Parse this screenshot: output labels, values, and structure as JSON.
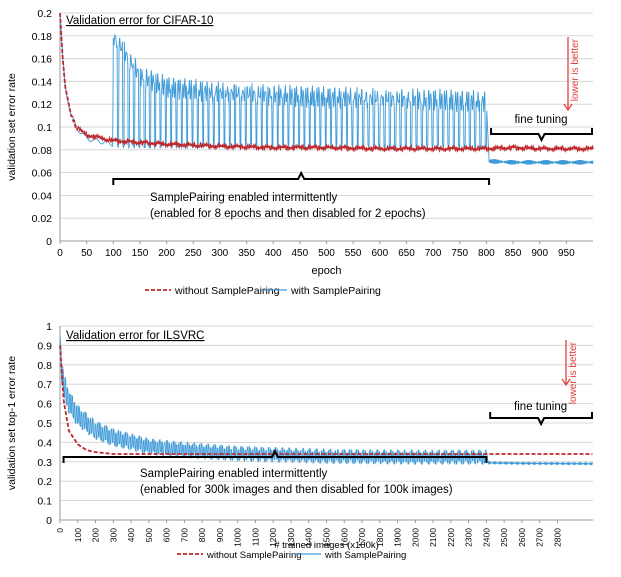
{
  "chart_data": [
    {
      "type": "line",
      "title": "Validation error for CIFAR-10",
      "xlabel": "epoch",
      "ylabel": "validation set error rate",
      "xlim": [
        0,
        1000
      ],
      "ylim": [
        0,
        0.2
      ],
      "x_ticks": [
        0,
        50,
        100,
        150,
        200,
        250,
        300,
        350,
        400,
        450,
        500,
        550,
        600,
        650,
        700,
        750,
        800,
        850,
        900,
        950
      ],
      "y_ticks": [
        0,
        0.02,
        0.04,
        0.06,
        0.08,
        0.1,
        0.12,
        0.14,
        0.16,
        0.18,
        0.2
      ],
      "y_tick_labels": [
        "0",
        "0.02",
        "0.04",
        "0.06",
        "0.08",
        "0.1",
        "0.12",
        "0.14",
        "0.16",
        "0.18",
        "0.2"
      ],
      "grid": true,
      "legend_position": "bottom",
      "series": [
        {
          "name": "without SamplePairing",
          "color": "#c0282d",
          "dash": true,
          "x": [
            0,
            5,
            10,
            20,
            30,
            50,
            100,
            200,
            300,
            400,
            500,
            600,
            700,
            800,
            850,
            900,
            950,
            1000
          ],
          "y": [
            0.2,
            0.16,
            0.135,
            0.112,
            0.1,
            0.093,
            0.088,
            0.085,
            0.083,
            0.082,
            0.082,
            0.081,
            0.081,
            0.081,
            0.082,
            0.081,
            0.081,
            0.081
          ]
        },
        {
          "name": "with SamplePairing",
          "color": "#3f9ad8",
          "dash": false,
          "x": [
            0,
            5,
            10,
            20,
            30,
            50,
            99,
            100,
            150,
            200,
            300,
            400,
            500,
            600,
            700,
            800,
            805,
            850,
            900,
            950,
            1000
          ],
          "y": [
            0.2,
            0.16,
            0.135,
            0.112,
            0.1,
            0.09,
            0.085,
            0.18,
            0.145,
            0.135,
            0.13,
            0.128,
            0.126,
            0.125,
            0.124,
            0.122,
            0.07,
            0.069,
            0.069,
            0.069,
            0.069
          ],
          "spiky_range": [
            100,
            800
          ],
          "spike_period": 10,
          "spike_low": 0.083
        }
      ],
      "annotations": {
        "intermittent_line1": "SamplePairing enabled intermittently",
        "intermittent_line2": "(enabled for 8 epochs and then disabled for 2 epochs)",
        "intermittent_range": [
          100,
          805
        ],
        "fine_tuning": "fine tuning",
        "fine_tuning_range": [
          805,
          1000
        ],
        "lower_is_better": "lower is better"
      }
    },
    {
      "type": "line",
      "title": "Validation error for ILSVRC",
      "xlabel": "# trained images (x100k)",
      "ylabel": "validation set top-1 error rate",
      "xlim": [
        0,
        3000
      ],
      "ylim": [
        0,
        1
      ],
      "x_ticks": [
        0,
        100,
        200,
        300,
        400,
        500,
        600,
        700,
        800,
        900,
        1000,
        1100,
        1200,
        1300,
        1400,
        1500,
        1600,
        1700,
        1800,
        1900,
        2000,
        2100,
        2200,
        2300,
        2400,
        2500,
        2600,
        2700,
        2800
      ],
      "y_ticks": [
        0,
        0.1,
        0.2,
        0.3,
        0.4,
        0.5,
        0.6,
        0.7,
        0.8,
        0.9,
        1
      ],
      "y_tick_labels": [
        "0",
        "0.1",
        "0.2",
        "0.3",
        "0.4",
        "0.5",
        "0.6",
        "0.7",
        "0.8",
        "0.9",
        "1"
      ],
      "grid": true,
      "legend_position": "bottom",
      "series": [
        {
          "name": "without SamplePairing",
          "color": "#c0282d",
          "dash": true,
          "x": [
            0,
            20,
            50,
            100,
            150,
            200,
            300,
            500,
            1000,
            1500,
            2000,
            2400,
            2450,
            3000
          ],
          "y": [
            0.9,
            0.62,
            0.46,
            0.39,
            0.36,
            0.35,
            0.34,
            0.34,
            0.34,
            0.34,
            0.34,
            0.34,
            0.34,
            0.34
          ]
        },
        {
          "name": "with SamplePairing",
          "color": "#3f9ad8",
          "dash": false,
          "x": [
            0,
            20,
            50,
            100,
            200,
            300,
            500,
            700,
            1000,
            1500,
            2000,
            2400,
            2410,
            2600,
            3000
          ],
          "y": [
            0.95,
            0.75,
            0.66,
            0.58,
            0.5,
            0.46,
            0.41,
            0.39,
            0.37,
            0.355,
            0.35,
            0.35,
            0.295,
            0.292,
            0.29
          ],
          "spiky_range": [
            0,
            2400
          ],
          "spike_period": 13,
          "spike_low_factor": 0.85
        }
      ],
      "annotations": {
        "intermittent_line1": "SamplePairing enabled intermittently",
        "intermittent_line2": "(enabled for 300k images and then disabled for 100k images)",
        "intermittent_range": [
          20,
          2400
        ],
        "fine_tuning": "fine tuning",
        "fine_tuning_range": [
          2410,
          3000
        ],
        "lower_is_better": "lower is better"
      }
    }
  ]
}
